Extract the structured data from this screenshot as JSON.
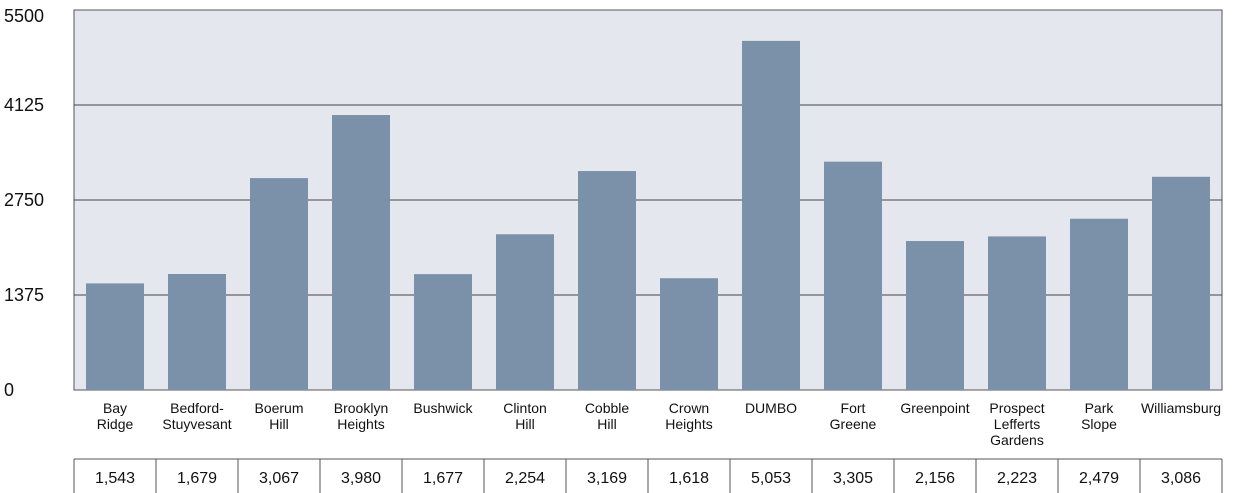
{
  "colors": {
    "plot_background": "#e4e8ee",
    "bar": "#7b91aa",
    "gridline": "#444444",
    "axis": "#555555",
    "text": "#111111"
  },
  "chart_data": {
    "type": "bar",
    "title": "",
    "xlabel": "",
    "ylabel": "",
    "ylim": [
      0,
      5500
    ],
    "yticks": [
      "0",
      "1375",
      "2750",
      "4125",
      "5500"
    ],
    "grid": true,
    "legend": "none",
    "categories": [
      [
        "Bay",
        "Ridge"
      ],
      [
        "Bedford-",
        "Stuyvesant"
      ],
      [
        "Boerum",
        "Hill"
      ],
      [
        "Brooklyn",
        "Heights"
      ],
      [
        "Bushwick"
      ],
      [
        "Clinton",
        "Hill"
      ],
      [
        "Cobble",
        "Hill"
      ],
      [
        "Crown",
        "Heights"
      ],
      [
        "DUMBO"
      ],
      [
        "Fort",
        "Greene"
      ],
      [
        "Greenpoint"
      ],
      [
        "Prospect",
        "Lefferts",
        "Gardens"
      ],
      [
        "Park",
        "Slope"
      ],
      [
        "Williamsburg"
      ]
    ],
    "values": [
      1543,
      1679,
      3067,
      3980,
      1677,
      2254,
      3169,
      1618,
      5053,
      3305,
      2156,
      2223,
      2479,
      3086
    ],
    "value_labels": [
      "1,543",
      "1,679",
      "3,067",
      "3,980",
      "1,677",
      "2,254",
      "3,169",
      "1,618",
      "5,053",
      "3,305",
      "2,156",
      "2,223",
      "2,479",
      "3,086"
    ]
  }
}
